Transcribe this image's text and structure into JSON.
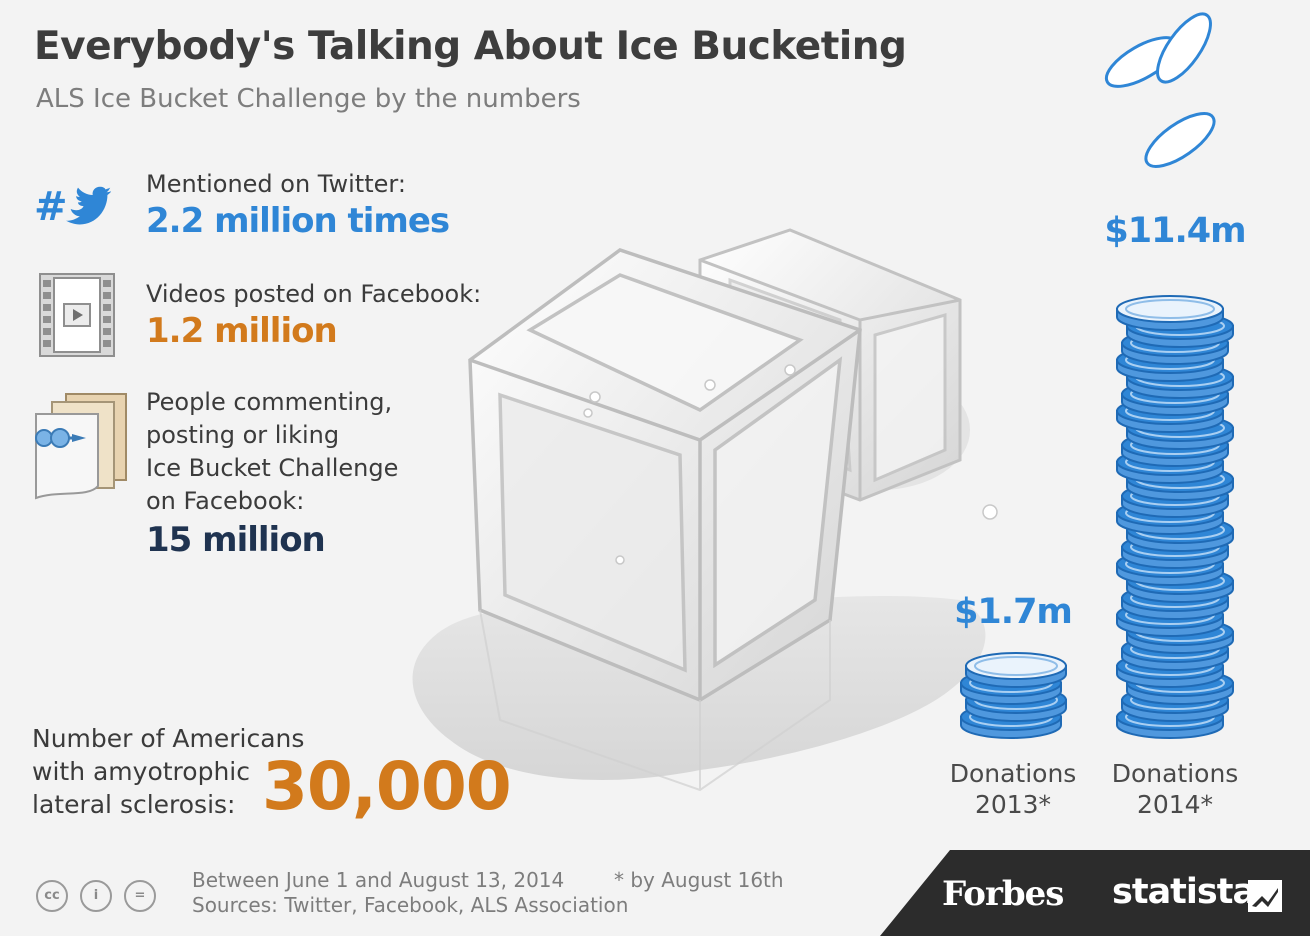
{
  "title": "Everybody's Talking About Ice Bucketing",
  "subtitle": "ALS Ice Bucket Challenge by the numbers",
  "stats": [
    {
      "label_lines": [
        "Mentioned on Twitter:"
      ],
      "value": "2.2 million  times",
      "color": "#2f86d6",
      "icon": "twitter-hashtag-icon"
    },
    {
      "label_lines": [
        "Videos posted on Facebook:"
      ],
      "value": "1.2 million",
      "color": "#d27a1c",
      "icon": "film-strip-icon"
    },
    {
      "label_lines": [
        "People commenting,",
        "posting or liking",
        "Ice Bucket Challenge",
        "on Facebook:"
      ],
      "value": "15 million",
      "color": "#1f3350",
      "icon": "documents-pin-icon"
    }
  ],
  "als": {
    "label_lines": [
      "Number of Americans",
      "with amyotrophic",
      "lateral sclerosis:"
    ],
    "value": "30,000",
    "color": "#d27a1c"
  },
  "chart_data": {
    "type": "bar",
    "categories": [
      "Donations 2013*",
      "Donations 2014*"
    ],
    "values": [
      1.7,
      11.4
    ],
    "value_labels": [
      "$1.7m",
      "$11.4m"
    ],
    "color": "#2f86d6"
  },
  "footnotes": {
    "period": "Between June 1 and August 13, 2014",
    "sources": "Sources: Twitter, Facebook, ALS Association",
    "asterisk": "* by August 16th"
  },
  "brands": {
    "forbes": "Forbes",
    "statista": "statista"
  },
  "license_icons": [
    "cc",
    "i",
    "="
  ]
}
